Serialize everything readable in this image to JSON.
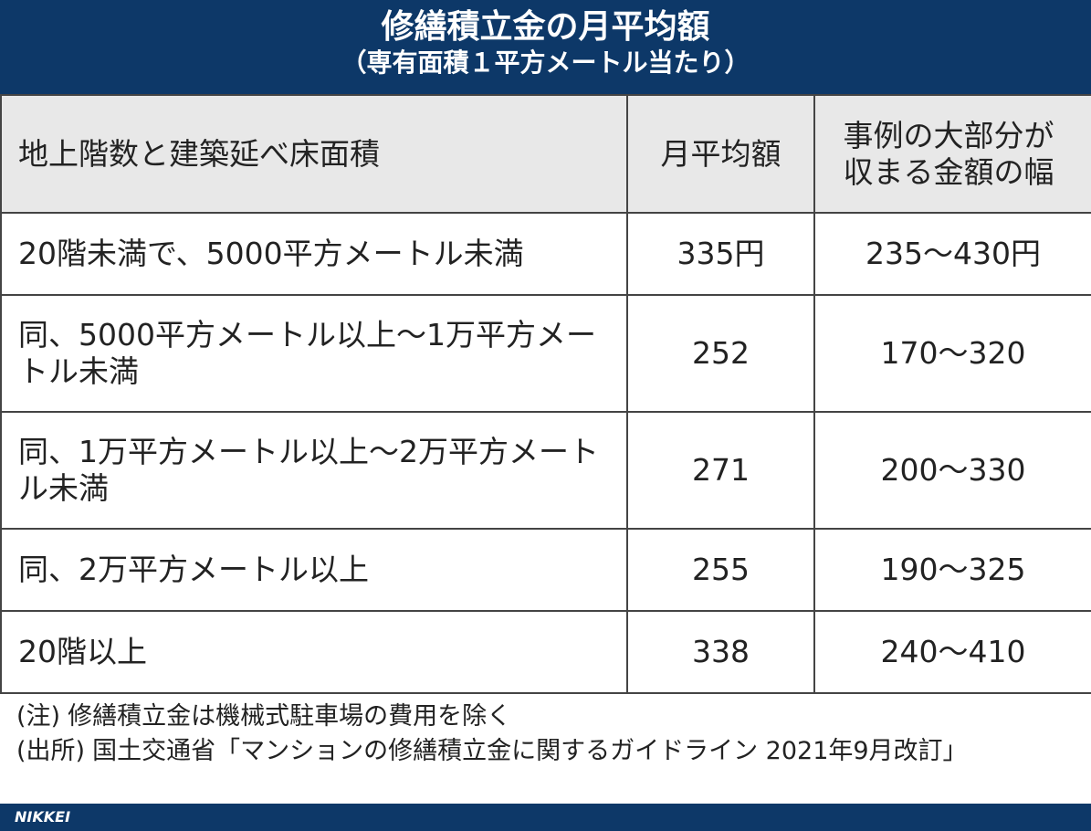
{
  "header": {
    "title": "修繕積立金の月平均額",
    "subtitle": "（専有面積１平方メートル当たり）"
  },
  "table": {
    "columns": [
      "地上階数と建築延べ床面積",
      "月平均額",
      "事例の大部分が収まる金額の幅"
    ],
    "rows": [
      [
        "20階未満で、5000平方メートル未満",
        "335円",
        "235～430円"
      ],
      [
        "同、5000平方メートル以上～1万平方メートル未満",
        "252",
        "170～320"
      ],
      [
        "同、1万平方メートル以上～2万平方メートル未満",
        "271",
        "200～330"
      ],
      [
        "同、2万平方メートル以上",
        "255",
        "190～325"
      ],
      [
        "20階以上",
        "338",
        "240～410"
      ]
    ]
  },
  "notes": [
    {
      "label": "(注)",
      "text": "修繕積立金は機械式駐車場の費用を除く"
    },
    {
      "label": "(出所)",
      "text": "国土交通省「マンションの修繕積立金に関するガイドライン 2021年9月改訂」"
    }
  ],
  "footer": {
    "brand": "NIKKEI"
  }
}
